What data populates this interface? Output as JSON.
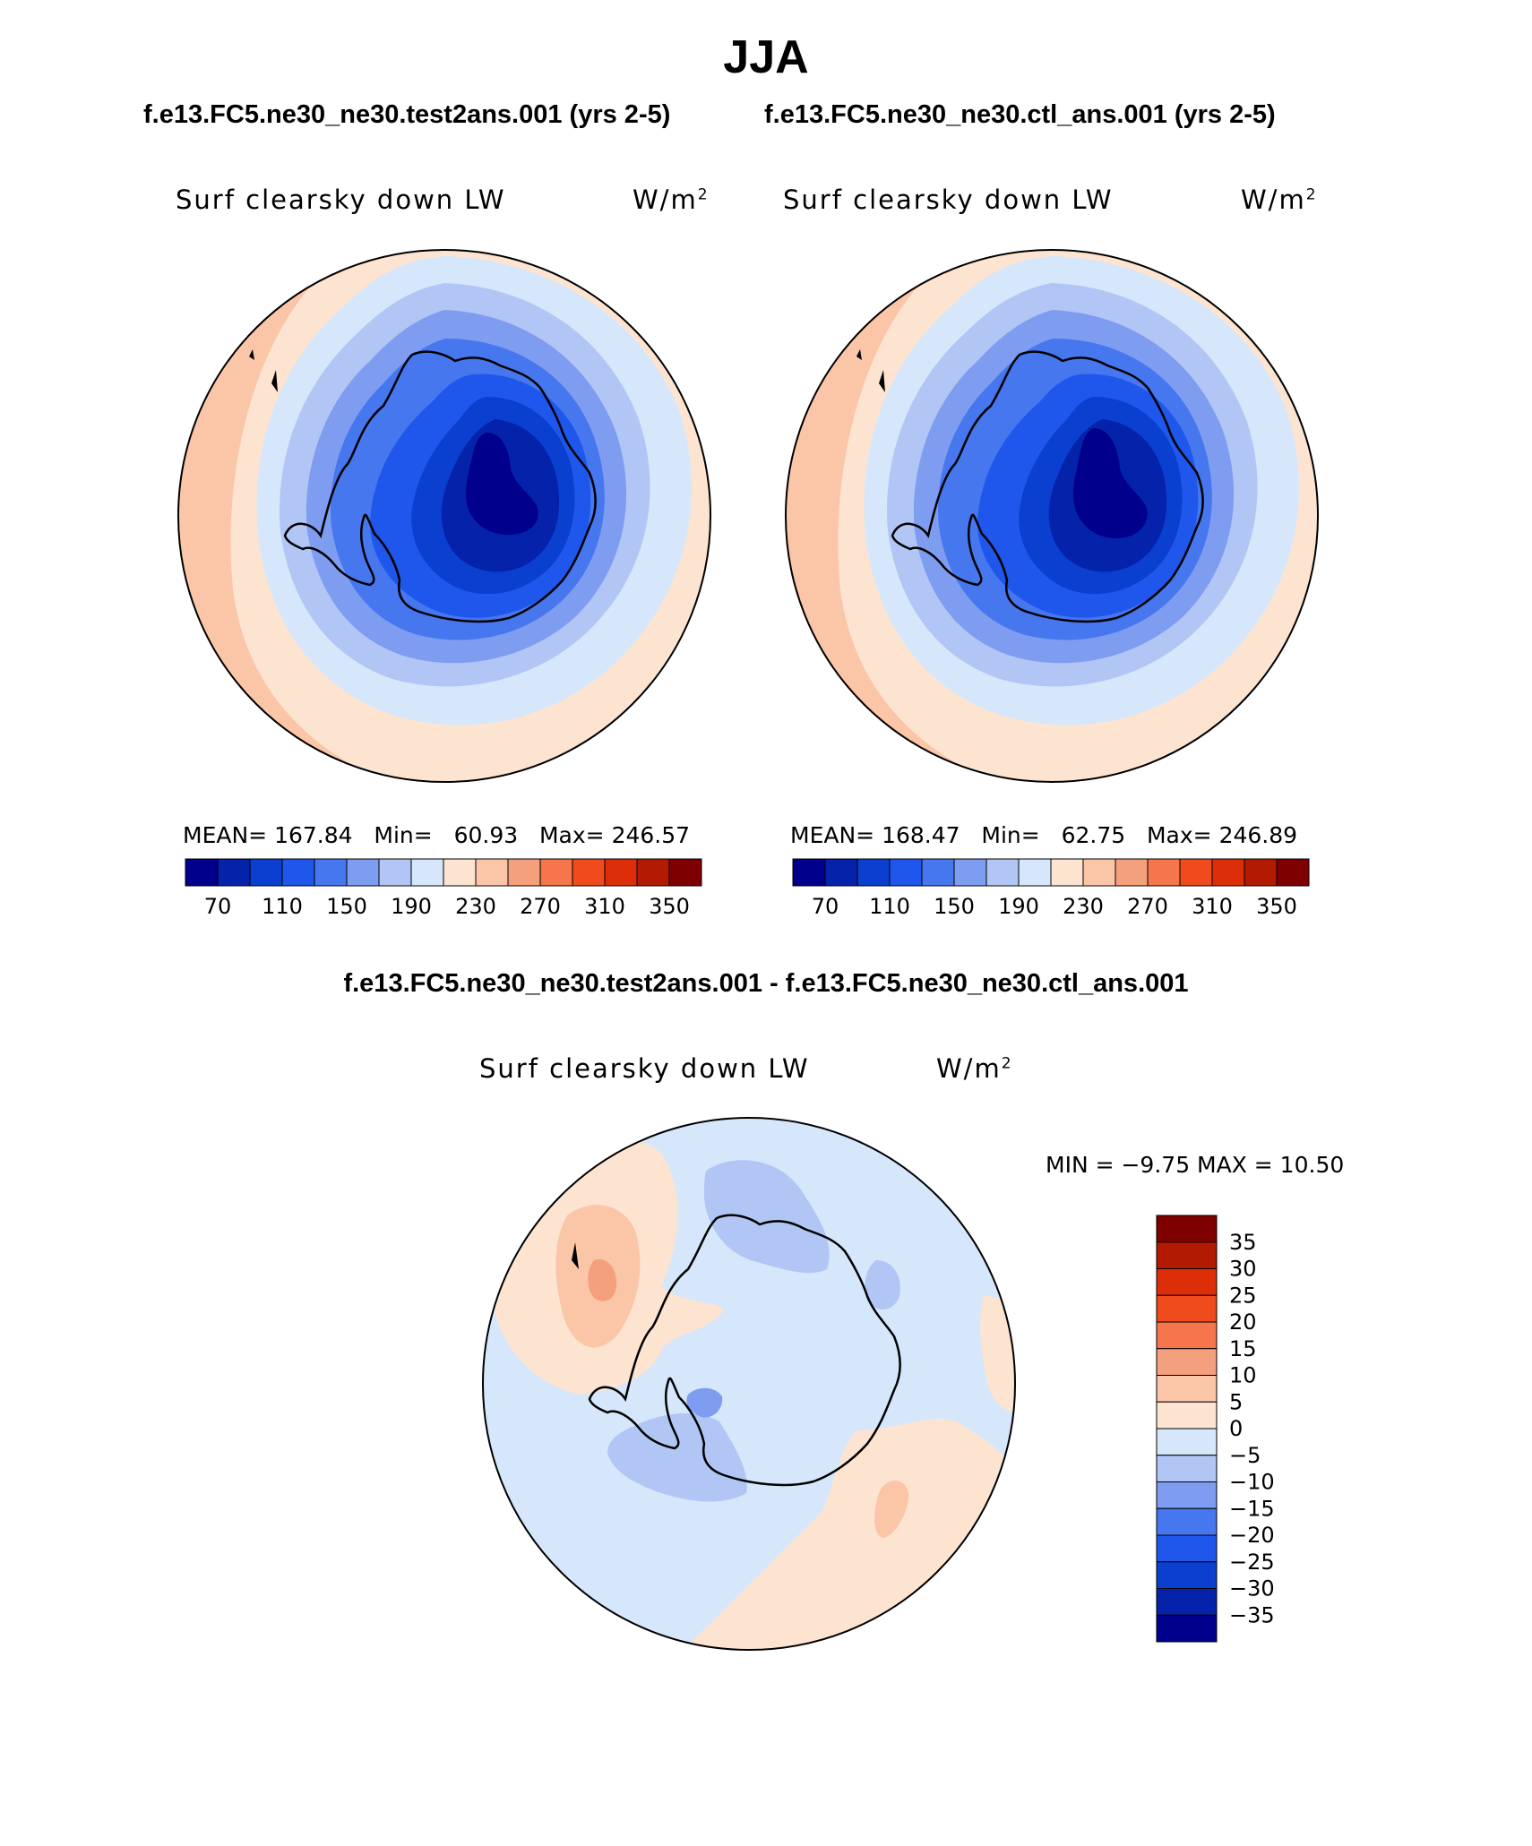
{
  "page_title": "JJA",
  "top_left": {
    "case": "f.e13.FC5.ne30_ne30.test2ans.001 (yrs 2-5)",
    "label": "Surf clearsky down LW",
    "units_base": "W/m",
    "units_exp": "2",
    "mean_label": "MEAN=",
    "mean": "167.84",
    "min_label": "Min=",
    "min": "60.93",
    "max_label": "Max=",
    "max": "246.57"
  },
  "top_right": {
    "case": "f.e13.FC5.ne30_ne30.ctl_ans.001 (yrs 2-5)",
    "label": "Surf clearsky down LW",
    "units_base": "W/m",
    "units_exp": "2",
    "mean_label": "MEAN=",
    "mean": "168.47",
    "min_label": "Min=",
    "min": "62.75",
    "max_label": "Max=",
    "max": "246.89"
  },
  "bottom": {
    "case": "f.e13.FC5.ne30_ne30.test2ans.001 - f.e13.FC5.ne30_ne30.ctl_ans.001",
    "label": "Surf clearsky down LW",
    "units_base": "W/m",
    "units_exp": "2",
    "minmax_text": "MIN =   −9.75 MAX =   10.50"
  },
  "chart_data": [
    {
      "type": "heatmap",
      "title": "f.e13.FC5.ne30_ne30.test2ans.001 (yrs 2-5)",
      "variable": "Surf clearsky down LW",
      "units": "W/m2",
      "projection": "south polar stereographic",
      "mean": 167.84,
      "min": 60.93,
      "max": 246.57,
      "colorbar_ticks": [
        "70",
        "110",
        "150",
        "190",
        "230",
        "270",
        "310",
        "350"
      ],
      "colorbar_colors": [
        "#00008c",
        "#0522aa",
        "#0a3fd0",
        "#1f57ec",
        "#4677ee",
        "#7e9df0",
        "#b1c6f5",
        "#d6e7fb",
        "#fde4d1",
        "#fbc6a8",
        "#f5a07c",
        "#f4764a",
        "#f04b1c",
        "#dd2e0a",
        "#b21a02",
        "#7f0000"
      ]
    },
    {
      "type": "heatmap",
      "title": "f.e13.FC5.ne30_ne30.ctl_ans.001 (yrs 2-5)",
      "variable": "Surf clearsky down LW",
      "units": "W/m2",
      "projection": "south polar stereographic",
      "mean": 168.47,
      "min": 62.75,
      "max": 246.89,
      "colorbar_ticks": [
        "70",
        "110",
        "150",
        "190",
        "230",
        "270",
        "310",
        "350"
      ],
      "colorbar_colors": [
        "#00008c",
        "#0522aa",
        "#0a3fd0",
        "#1f57ec",
        "#4677ee",
        "#7e9df0",
        "#b1c6f5",
        "#d6e7fb",
        "#fde4d1",
        "#fbc6a8",
        "#f5a07c",
        "#f4764a",
        "#f04b1c",
        "#dd2e0a",
        "#b21a02",
        "#7f0000"
      ]
    },
    {
      "type": "heatmap",
      "title": "f.e13.FC5.ne30_ne30.test2ans.001 - f.e13.FC5.ne30_ne30.ctl_ans.001",
      "variable": "Surf clearsky down LW",
      "units": "W/m2",
      "projection": "south polar stereographic",
      "min": -9.75,
      "max": 10.5,
      "colorbar_ticks": [
        "35",
        "30",
        "25",
        "20",
        "15",
        "10",
        "5",
        "0",
        "−5",
        "−10",
        "−15",
        "−20",
        "−25",
        "−30",
        "−35"
      ],
      "colorbar_colors": [
        "#7f0000",
        "#b21a02",
        "#dd2e0a",
        "#f04b1c",
        "#f4764a",
        "#f5a07c",
        "#fbc6a8",
        "#fde4d1",
        "#d6e7fb",
        "#b1c6f5",
        "#7e9df0",
        "#4677ee",
        "#1f57ec",
        "#0a3fd0",
        "#0522aa",
        "#00008c"
      ]
    }
  ]
}
